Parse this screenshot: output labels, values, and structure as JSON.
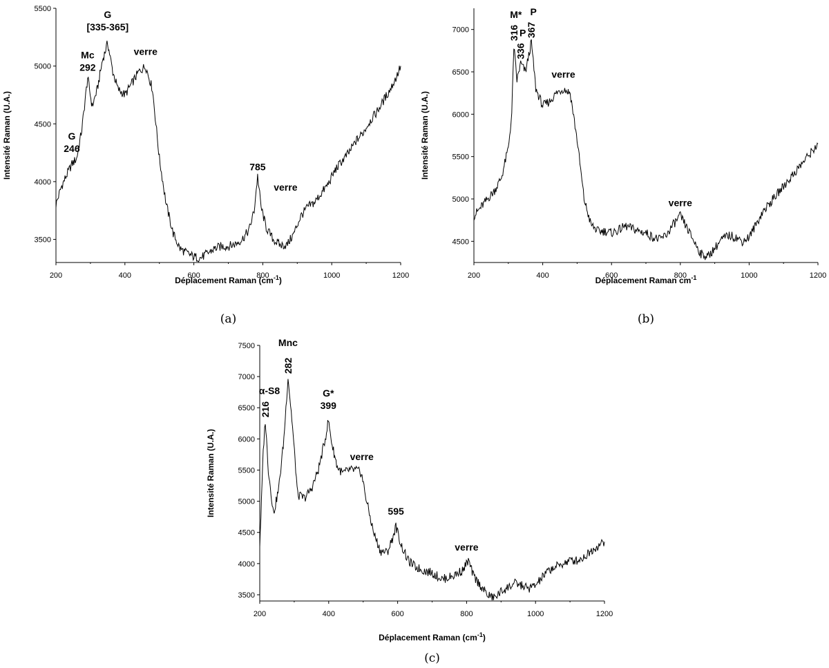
{
  "chart_data": [
    {
      "type": "line",
      "caption": "(a)",
      "xlabel": "Déplacement Raman (cm",
      "xlabel_sup": "-1",
      "xlabel_end": ")",
      "ylabel": "Intensité Raman (U.A.)",
      "xlim": [
        200,
        1200
      ],
      "ylim": [
        3300,
        5500
      ],
      "xticks": [
        200,
        400,
        600,
        800,
        1000,
        1200
      ],
      "yticks": [
        3500,
        4000,
        4500,
        5000,
        5500
      ],
      "grid": false,
      "series": [
        {
          "x": [
            200,
            215,
            230,
            246,
            260,
            275,
            292,
            305,
            320,
            335,
            350,
            365,
            380,
            400,
            420,
            440,
            460,
            480,
            500,
            520,
            540,
            560,
            580,
            600,
            620,
            640,
            660,
            680,
            700,
            720,
            740,
            760,
            775,
            785,
            795,
            810,
            830,
            850,
            870,
            890,
            910,
            930,
            950,
            970,
            990,
            1010,
            1030,
            1050,
            1070,
            1090,
            1110,
            1130,
            1150,
            1170,
            1190,
            1200
          ],
          "y": [
            3800,
            3950,
            4050,
            4150,
            4200,
            4450,
            4900,
            4650,
            4800,
            5050,
            5200,
            4950,
            4800,
            4750,
            4850,
            4950,
            5000,
            4800,
            4200,
            3800,
            3550,
            3420,
            3380,
            3350,
            3340,
            3380,
            3420,
            3440,
            3440,
            3460,
            3500,
            3580,
            3750,
            4050,
            3780,
            3600,
            3500,
            3450,
            3450,
            3550,
            3700,
            3780,
            3820,
            3900,
            3980,
            4100,
            4180,
            4250,
            4350,
            4420,
            4520,
            4600,
            4700,
            4800,
            4920,
            5000
          ]
        }
      ],
      "annotations": [
        {
          "lines": [
            "G",
            "246"
          ],
          "x": 246,
          "y": 4150
        },
        {
          "lines": [
            "Mc",
            "292"
          ],
          "x": 292,
          "y": 4900
        },
        {
          "lines": [
            "G",
            "[335-365]"
          ],
          "x": 350,
          "y": 5250
        },
        {
          "lines": [
            "verre"
          ],
          "x": 460,
          "y": 5050
        },
        {
          "lines": [
            "785"
          ],
          "x": 785,
          "y": 4050
        },
        {
          "lines": [
            "verre"
          ],
          "x": 830,
          "y": 3850
        }
      ]
    },
    {
      "type": "line",
      "caption": "(b)",
      "xlabel": "Déplacement Raman cm",
      "xlabel_sup": "-1",
      "xlabel_end": "",
      "ylabel": "Intensité Raman (U.A.)",
      "xlim": [
        200,
        1200
      ],
      "ylim": [
        4250,
        7250
      ],
      "xticks": [
        200,
        400,
        600,
        800,
        1000,
        1200
      ],
      "yticks": [
        4500,
        5000,
        5500,
        6000,
        6500,
        7000
      ],
      "grid": false,
      "series": [
        {
          "x": [
            200,
            220,
            240,
            260,
            280,
            300,
            310,
            316,
            325,
            336,
            350,
            367,
            380,
            400,
            420,
            440,
            460,
            480,
            500,
            520,
            540,
            560,
            580,
            600,
            620,
            640,
            660,
            680,
            700,
            720,
            740,
            760,
            780,
            800,
            820,
            840,
            860,
            880,
            900,
            920,
            940,
            960,
            980,
            1000,
            1020,
            1040,
            1060,
            1080,
            1100,
            1120,
            1140,
            1160,
            1180,
            1200
          ],
          "y": [
            4800,
            4900,
            5000,
            5100,
            5250,
            5600,
            6000,
            6800,
            6400,
            6600,
            6500,
            6850,
            6300,
            6100,
            6150,
            6250,
            6300,
            6250,
            5700,
            5000,
            4700,
            4620,
            4620,
            4600,
            4630,
            4680,
            4650,
            4620,
            4600,
            4550,
            4520,
            4580,
            4700,
            4800,
            4650,
            4500,
            4350,
            4320,
            4420,
            4520,
            4570,
            4550,
            4500,
            4550,
            4700,
            4850,
            4950,
            5050,
            5150,
            5250,
            5350,
            5450,
            5550,
            5650
          ]
        }
      ],
      "annotations": [
        {
          "lines": [
            "M*",
            "316"
          ],
          "x": 316,
          "y": 6800,
          "rotated": true
        },
        {
          "lines": [
            "P",
            "336"
          ],
          "x": 336,
          "y": 6600,
          "rotated": true
        },
        {
          "lines": [
            "P",
            "367"
          ],
          "x": 367,
          "y": 6850,
          "rotated": true
        },
        {
          "lines": [
            "verre"
          ],
          "x": 460,
          "y": 6350
        },
        {
          "lines": [
            "verre"
          ],
          "x": 800,
          "y": 4850
        }
      ]
    },
    {
      "type": "line",
      "caption": "(c)",
      "xlabel": "Déplacement Raman (cm",
      "xlabel_sup": "-1",
      "xlabel_end": ")",
      "ylabel": "Intensité Raman (U.A.)",
      "xlim": [
        200,
        1200
      ],
      "ylim": [
        3400,
        7500
      ],
      "xticks": [
        200,
        400,
        600,
        800,
        1000,
        1200
      ],
      "yticks": [
        3500,
        4000,
        4500,
        5000,
        5500,
        6000,
        6500,
        7000,
        7500
      ],
      "grid": false,
      "series": [
        {
          "x": [
            200,
            205,
            210,
            216,
            225,
            240,
            255,
            270,
            282,
            295,
            310,
            330,
            350,
            370,
            390,
            399,
            410,
            425,
            440,
            460,
            480,
            495,
            510,
            530,
            550,
            570,
            585,
            595,
            610,
            630,
            650,
            670,
            700,
            730,
            760,
            790,
            805,
            820,
            840,
            860,
            880,
            900,
            920,
            940,
            960,
            980,
            1000,
            1020,
            1040,
            1060,
            1080,
            1100,
            1120,
            1140,
            1160,
            1180,
            1200
          ],
          "y": [
            4300,
            5000,
            5800,
            6300,
            5500,
            4800,
            5200,
            6000,
            7000,
            6200,
            5100,
            5050,
            5200,
            5500,
            6000,
            6300,
            5900,
            5550,
            5450,
            5500,
            5500,
            5450,
            5000,
            4500,
            4200,
            4180,
            4400,
            4600,
            4300,
            4050,
            3950,
            3900,
            3850,
            3750,
            3800,
            3900,
            4050,
            3800,
            3650,
            3500,
            3450,
            3550,
            3620,
            3680,
            3650,
            3600,
            3650,
            3780,
            3900,
            3950,
            4000,
            4050,
            4050,
            4100,
            4200,
            4280,
            4350
          ]
        }
      ],
      "annotations": [
        {
          "lines": [
            "α-S8"
          ],
          "x": 216,
          "y": 6650
        },
        {
          "lines": [
            "216"
          ],
          "x": 216,
          "y": 6300,
          "rotated": true
        },
        {
          "lines": [
            "Mnc"
          ],
          "x": 282,
          "y": 7400
        },
        {
          "lines": [
            "282"
          ],
          "x": 282,
          "y": 7000,
          "rotated": true
        },
        {
          "lines": [
            "G*",
            "399"
          ],
          "x": 399,
          "y": 6350
        },
        {
          "lines": [
            "verre"
          ],
          "x": 480,
          "y": 5550
        },
        {
          "lines": [
            "595"
          ],
          "x": 595,
          "y": 4650
        },
        {
          "lines": [
            "verre"
          ],
          "x": 800,
          "y": 4100
        }
      ]
    }
  ]
}
